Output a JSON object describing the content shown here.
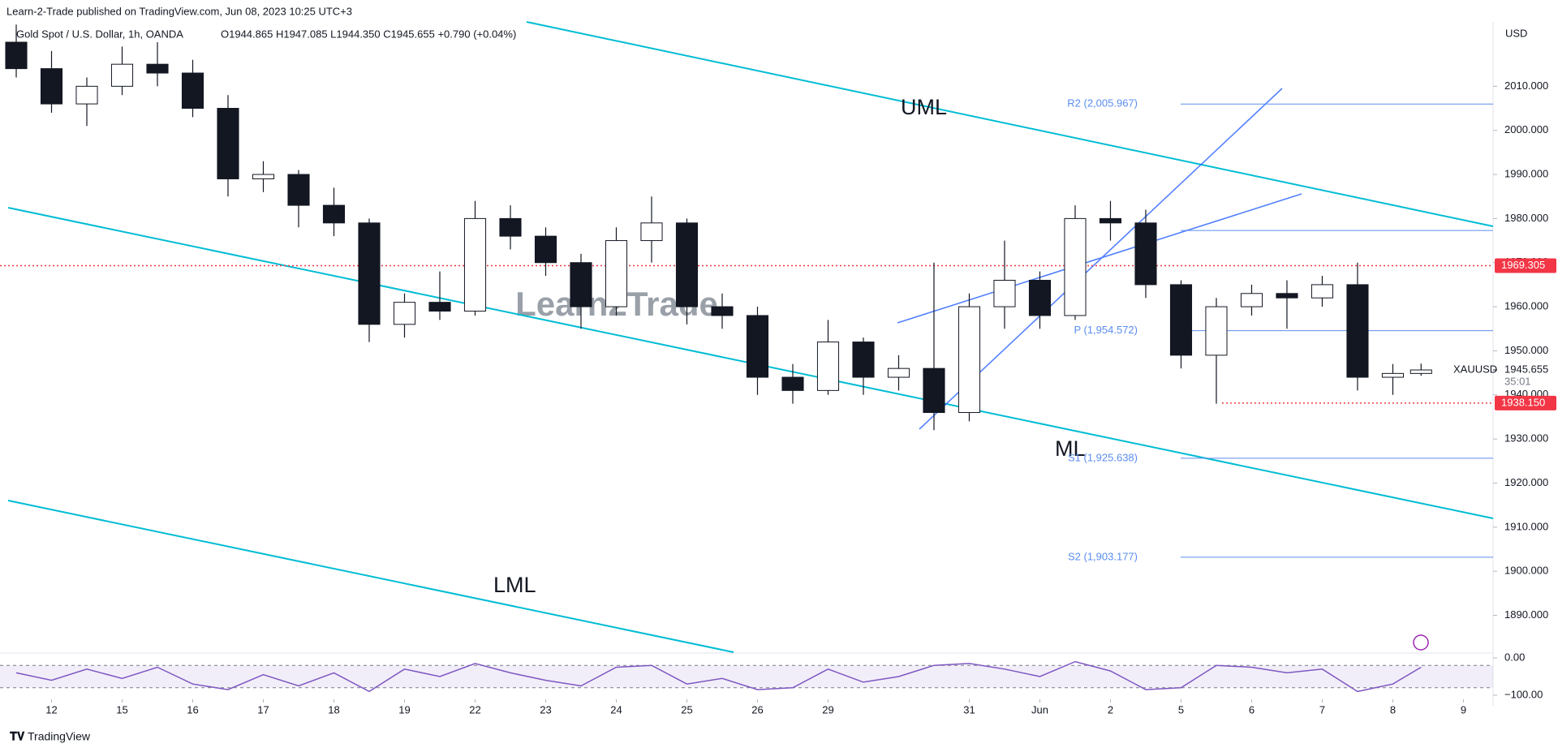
{
  "header": {
    "published": "Learn-2-Trade published on TradingView.com, Jun 08, 2023 10:25 UTC+3",
    "symbol": "Gold Spot / U.S. Dollar, 1h, OANDA",
    "ohlc": "O1944.865 H1947.085 L1944.350 C1945.655 +0.790 (+0.04%)"
  },
  "footer": {
    "brand": "TradingView"
  },
  "chart_data": {
    "type": "candlestick",
    "currency": "USD",
    "watermark": "Learn2Trade",
    "x": [
      -0.5,
      0,
      0.5,
      1,
      1.5,
      2,
      2.5,
      3,
      3.5,
      4,
      4.5,
      5,
      5.5,
      6,
      6.5,
      7,
      7.5,
      8,
      8.5,
      9,
      9.5,
      10,
      10.5,
      11,
      11.5,
      12,
      12.5,
      13,
      13.5,
      14,
      14.5,
      15,
      15.5,
      16,
      16.5,
      17,
      17.5,
      18,
      18.5,
      19,
      19.4
    ],
    "open": [
      2020,
      2014,
      2006,
      2010,
      2015,
      2013,
      2005,
      1989,
      1990,
      1983,
      1979,
      1956,
      1961,
      1959,
      1980,
      1976,
      1970,
      1960,
      1975,
      1979,
      1960,
      1958,
      1944,
      1941,
      1952,
      1944,
      1946,
      1936,
      1960,
      1966,
      1958,
      1980,
      1979,
      1965,
      1949,
      1960,
      1963,
      1962,
      1965,
      1944,
      1944.865
    ],
    "high": [
      2024,
      2018,
      2012,
      2019,
      2020,
      2016,
      2008,
      1993,
      1991,
      1987,
      1980,
      1963,
      1968,
      1984,
      1983,
      1978,
      1972,
      1978,
      1985,
      1980,
      1963,
      1960,
      1947,
      1957,
      1953,
      1949,
      1970,
      1963,
      1975,
      1968,
      1983,
      1984,
      1982,
      1966,
      1962,
      1965,
      1966,
      1967,
      1970,
      1947,
      1947.085
    ],
    "low": [
      2012,
      2004,
      2001,
      2008,
      2010,
      2003,
      1985,
      1986,
      1978,
      1976,
      1952,
      1953,
      1957,
      1958,
      1973,
      1967,
      1955,
      1958,
      1970,
      1956,
      1955,
      1940,
      1938,
      1940,
      1940,
      1941,
      1932,
      1934,
      1955,
      1955,
      1957,
      1975,
      1962,
      1946,
      1938,
      1958,
      1955,
      1960,
      1941,
      1940,
      1944.35
    ],
    "close": [
      2014,
      2006,
      2010,
      2015,
      2013,
      2005,
      1989,
      1990,
      1983,
      1979,
      1956,
      1961,
      1959,
      1980,
      1976,
      1970,
      1960,
      1975,
      1979,
      1960,
      1958,
      1944,
      1941,
      1952,
      1944,
      1946,
      1936,
      1960,
      1966,
      1958,
      1980,
      1979,
      1965,
      1949,
      1960,
      1963,
      1962,
      1965,
      1944,
      1944.865,
      1945.655
    ],
    "color": "#131722",
    "xlim": [
      -0.73,
      20.42
    ],
    "xticks": [
      {
        "value": 0,
        "label": "12"
      },
      {
        "value": 1,
        "label": "15"
      },
      {
        "value": 2,
        "label": "16"
      },
      {
        "value": 3,
        "label": "17"
      },
      {
        "value": 4,
        "label": "18"
      },
      {
        "value": 5,
        "label": "19"
      },
      {
        "value": 6,
        "label": "22"
      },
      {
        "value": 7,
        "label": "23"
      },
      {
        "value": 8,
        "label": "24"
      },
      {
        "value": 9,
        "label": "25"
      },
      {
        "value": 10,
        "label": "26"
      },
      {
        "value": 11,
        "label": "29"
      },
      {
        "value": 13,
        "label": "31"
      },
      {
        "value": 14,
        "label": "Jun"
      },
      {
        "value": 15,
        "label": "2"
      },
      {
        "value": 16,
        "label": "5"
      },
      {
        "value": 17,
        "label": "6"
      },
      {
        "value": 18,
        "label": "7"
      },
      {
        "value": 19,
        "label": "8"
      },
      {
        "value": 20,
        "label": "9"
      }
    ],
    "ylim": [
      1882,
      2024.6
    ],
    "yticks": [
      {
        "value": 1890,
        "label": "1890.000"
      },
      {
        "value": 1900,
        "label": "1900.000"
      },
      {
        "value": 1910,
        "label": "1910.000"
      },
      {
        "value": 1920,
        "label": "1920.000"
      },
      {
        "value": 1930,
        "label": "1930.000"
      },
      {
        "value": 1940,
        "label": "1940.000"
      },
      {
        "value": 1950,
        "label": "1950.000"
      },
      {
        "value": 1960,
        "label": "1960.000"
      },
      {
        "value": 1970,
        "label": "1970.000"
      },
      {
        "value": 1980,
        "label": "1980.000"
      },
      {
        "value": 1990,
        "label": "1990.000"
      },
      {
        "value": 2000,
        "label": "2000.000"
      },
      {
        "value": 2010,
        "label": "2010.000"
      }
    ],
    "pivots": [
      {
        "label": "R2 (2,005.967)",
        "value": 2005.967
      },
      {
        "value": 1977.3
      },
      {
        "label": "P (1,954.572)",
        "value": 1954.572
      },
      {
        "label": "S1 (1,925.638)",
        "value": 1925.638
      },
      {
        "label": "S2 (1,903.177)",
        "value": 1903.177
      }
    ],
    "levels": [
      {
        "label": "1969.305",
        "value": 1969.305,
        "start": -0.73
      },
      {
        "label": "1938.150",
        "value": 1938.15,
        "start": 16.58
      }
    ],
    "level_color": "#f23645",
    "annotations": [
      "UML",
      "ML",
      "LML"
    ],
    "last": {
      "symbol": "XAUUSD",
      "label": "1945.655",
      "value": 1945.655,
      "countdown": "35:01"
    },
    "oscillator": {
      "color": "#7e57c2",
      "ylim": [
        -110.9,
        10.9
      ],
      "bands": [
        -20,
        -80
      ],
      "yticks": [
        {
          "value": 0,
          "label": "0.00"
        },
        {
          "value": -100,
          "label": "−100.00"
        }
      ],
      "values": [
        -40,
        -60,
        -30,
        -55,
        -25,
        -70,
        -85,
        -45,
        -75,
        -40,
        -90,
        -30,
        -50,
        -15,
        -40,
        -60,
        -75,
        -25,
        -20,
        -70,
        -55,
        -85,
        -80,
        -30,
        -65,
        -50,
        -20,
        -15,
        -30,
        -50,
        -10,
        -35,
        -85,
        -80,
        -20,
        -25,
        -40,
        -30,
        -90,
        -70,
        -25
      ]
    }
  }
}
